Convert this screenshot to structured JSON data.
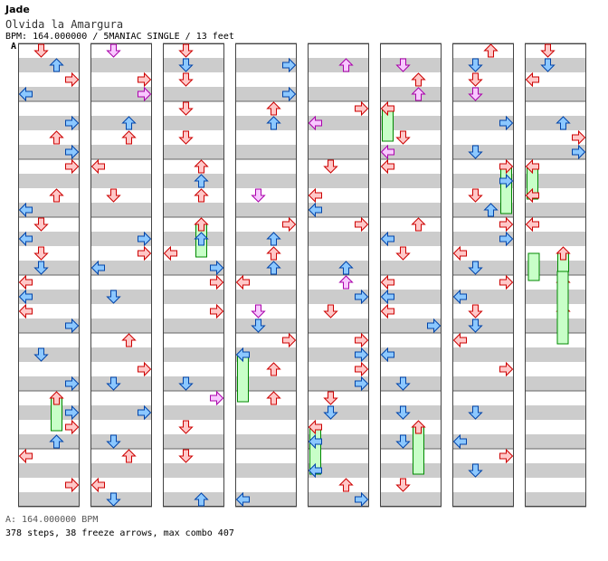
{
  "song": {
    "artist": "Jade",
    "title": "Olvida la Amargura",
    "meta": "BPM: 164.000000 / 5MANIAC SINGLE / 13 feet",
    "bpm_marker": "A"
  },
  "footer": {
    "bpm_line": "A: 164.000000 BPM",
    "stats": "378 steps, 38 freeze arrows, max combo 407"
  },
  "colors": {
    "stripe": "#cccccc",
    "red_arrow": "#ffc8c8",
    "red_stroke": "#cc0000",
    "blue_arrow": "#8cc8ff",
    "blue_stroke": "#0044aa",
    "pink_arrow": "#f8c8ff",
    "pink_stroke": "#aa00aa",
    "freeze_fill": "#c8ffc8",
    "freeze_stroke": "#008800"
  },
  "chart_data": {
    "type": "stepchart",
    "columns": 8,
    "measures_per_column": 8,
    "lanes": [
      "left",
      "down",
      "up",
      "right"
    ],
    "icons": [
      "arrow-left-icon",
      "arrow-down-icon",
      "arrow-up-icon",
      "arrow-right-icon"
    ],
    "steps": 378,
    "freeze_arrows": 38,
    "max_combo": 407,
    "bpm": 164.0,
    "difficulty": "5MANIAC SINGLE",
    "feet": 13
  }
}
